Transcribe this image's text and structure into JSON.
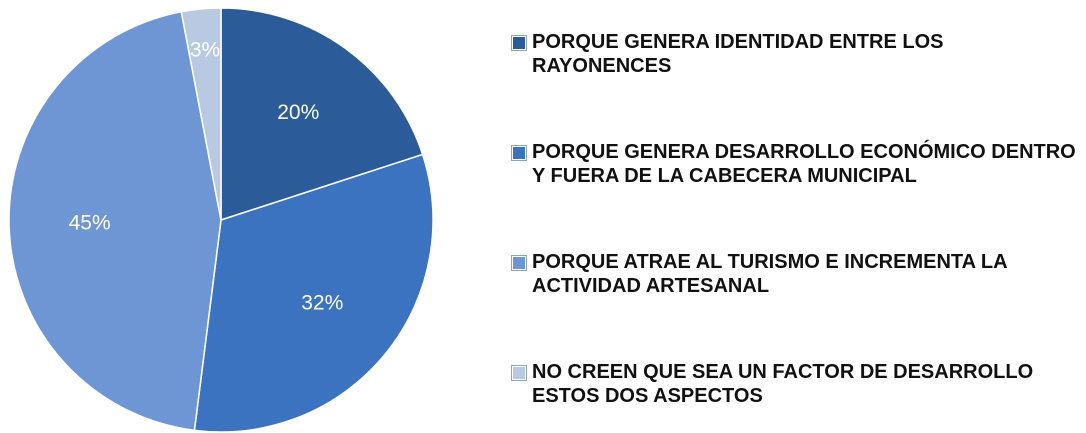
{
  "chart_data": {
    "type": "pie",
    "categories": [
      "PORQUE GENERA IDENTIDAD ENTRE LOS RAYONENCES",
      "PORQUE GENERA DESARROLLO ECONÓMICO DENTRO Y FUERA DE LA CABECERA MUNICIPAL",
      "PORQUE ATRAE AL TURISMO E INCREMENTA LA ACTIVIDAD ARTESANAL",
      "NO CREEN QUE SEA UN FACTOR DE DESARROLLO ESTOS DOS ASPECTOS"
    ],
    "values": [
      20,
      32,
      45,
      3
    ],
    "value_labels": [
      "20%",
      "32%",
      "45%",
      "3%"
    ],
    "colors": [
      "#2b5b98",
      "#3b73c1",
      "#6e96d5",
      "#b9c9e2"
    ],
    "legend": "right"
  }
}
